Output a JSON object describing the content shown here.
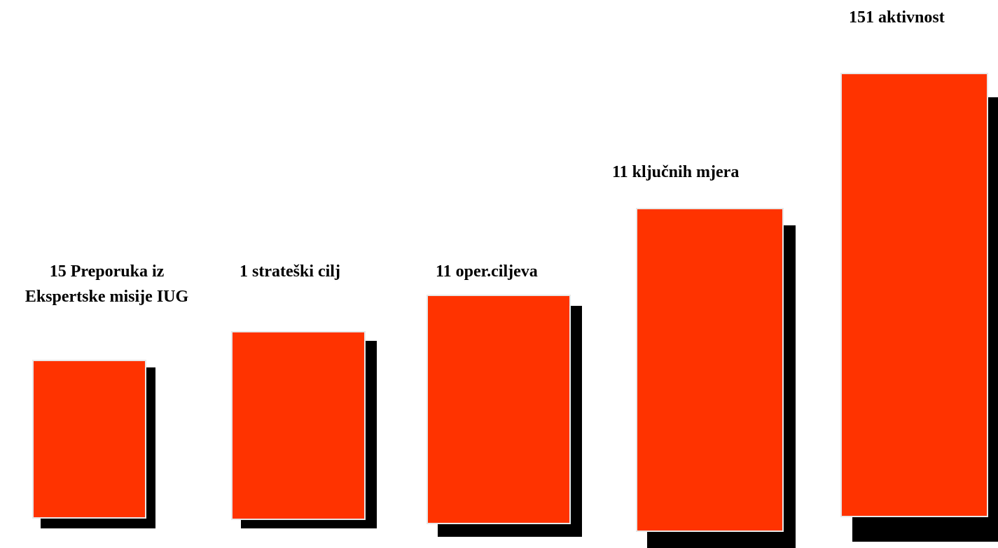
{
  "colors": {
    "block_fill": "#ff3300",
    "shadow": "#000000",
    "text": "#000000"
  },
  "steps": [
    {
      "label_lines": [
        "15 Preporuka iz",
        "Ekspertske misije IUG"
      ]
    },
    {
      "label": "1 strateški cilj"
    },
    {
      "label": "11 oper.ciljeva"
    },
    {
      "label": "11 ključnih mjera"
    },
    {
      "label": "151 aktivnost"
    }
  ]
}
